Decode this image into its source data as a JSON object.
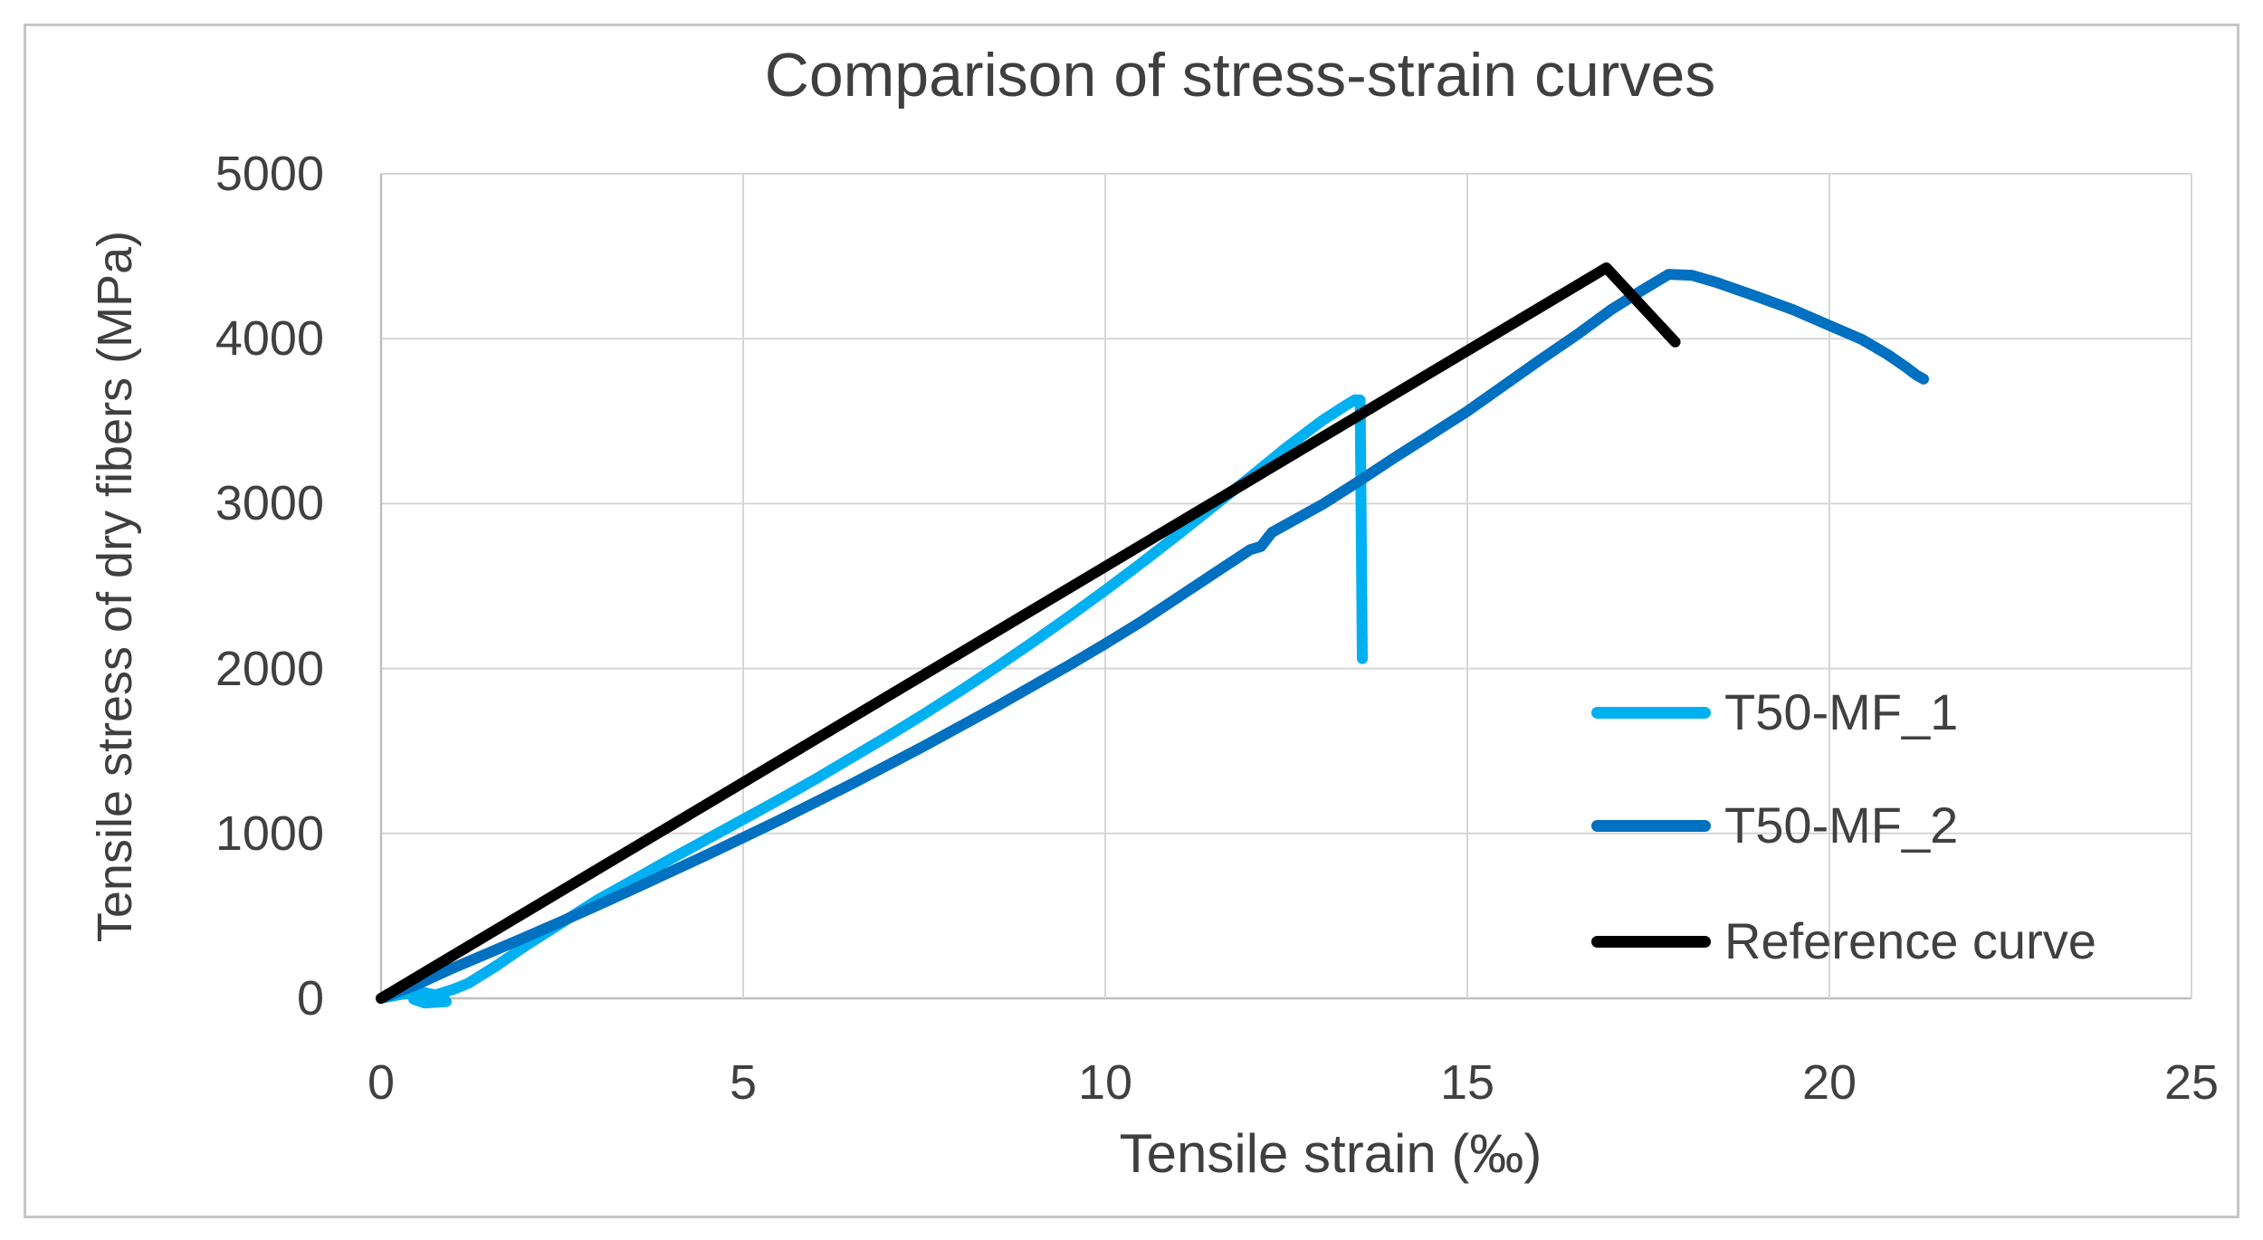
{
  "figure": {
    "title": "Comparison of stress-strain curves",
    "x_axis": {
      "label": "Tensile strain (‰)",
      "ticks": [
        "0",
        "5",
        "10",
        "15",
        "20",
        "25"
      ]
    },
    "y_axis": {
      "label": "Tensile stress of dry fibers (MPa)",
      "ticks": [
        "0",
        "1000",
        "2000",
        "3000",
        "4000",
        "5000"
      ]
    },
    "legend": [
      {
        "label": "T50-MF_1",
        "color": "#00B0F0"
      },
      {
        "label": "T50-MF_2",
        "color": "#0070C0"
      },
      {
        "label": "Reference curve",
        "color": "#000000"
      }
    ],
    "colors": {
      "grid": "#D6D6D6",
      "axis_line": "#BFBFBF",
      "text": "#3F3F3F",
      "series_1": "#00B0F0",
      "series_2": "#0070C0",
      "reference": "#000000"
    }
  },
  "chart_data": {
    "type": "line",
    "title": "Comparison of stress-strain curves",
    "xlabel": "Tensile strain (‰)",
    "ylabel": "Tensile stress of dry fibers (MPa)",
    "xlim": [
      0,
      25
    ],
    "ylim": [
      0,
      5000
    ],
    "x_ticks": [
      0,
      5,
      10,
      15,
      20,
      25
    ],
    "y_ticks": [
      0,
      1000,
      2000,
      3000,
      4000,
      5000
    ],
    "grid": true,
    "legend_position": "inside-right",
    "series": [
      {
        "name": "T50-MF_1",
        "color": "#00B0F0",
        "points": [
          [
            0.05,
            5
          ],
          [
            0.3,
            25
          ],
          [
            0.6,
            35
          ],
          [
            0.85,
            10
          ],
          [
            0.9,
            -20
          ],
          [
            0.6,
            -28
          ],
          [
            0.45,
            -5
          ],
          [
            0.75,
            20
          ],
          [
            1.0,
            55
          ],
          [
            1.2,
            90
          ],
          [
            1.6,
            200
          ],
          [
            2,
            320
          ],
          [
            2.5,
            460
          ],
          [
            3,
            600
          ],
          [
            3.5,
            722
          ],
          [
            4,
            845
          ],
          [
            4.5,
            965
          ],
          [
            5,
            1085
          ],
          [
            5.5,
            1205
          ],
          [
            6,
            1330
          ],
          [
            6.5,
            1460
          ],
          [
            7,
            1590
          ],
          [
            7.5,
            1725
          ],
          [
            8,
            1865
          ],
          [
            8.5,
            2010
          ],
          [
            9,
            2160
          ],
          [
            9.5,
            2315
          ],
          [
            10,
            2475
          ],
          [
            10.5,
            2640
          ],
          [
            11,
            2810
          ],
          [
            11.5,
            2985
          ],
          [
            12,
            3160
          ],
          [
            12.5,
            3340
          ],
          [
            13,
            3505
          ],
          [
            13.3,
            3590
          ],
          [
            13.45,
            3630
          ],
          [
            13.52,
            3628
          ],
          [
            13.55,
            2060
          ]
        ]
      },
      {
        "name": "T50-MF_2",
        "color": "#0070C0",
        "points": [
          [
            0,
            0
          ],
          [
            0.5,
            85
          ],
          [
            1,
            185
          ],
          [
            1.5,
            278
          ],
          [
            2,
            372
          ],
          [
            2.5,
            468
          ],
          [
            3,
            566
          ],
          [
            3.5,
            666
          ],
          [
            4,
            768
          ],
          [
            4.5,
            870
          ],
          [
            5,
            975
          ],
          [
            5.5,
            1080
          ],
          [
            6,
            1190
          ],
          [
            6.5,
            1300
          ],
          [
            7,
            1415
          ],
          [
            7.5,
            1530
          ],
          [
            8,
            1650
          ],
          [
            8.5,
            1770
          ],
          [
            9,
            1895
          ],
          [
            9.5,
            2020
          ],
          [
            10,
            2150
          ],
          [
            10.5,
            2285
          ],
          [
            11,
            2430
          ],
          [
            11.5,
            2575
          ],
          [
            12,
            2720
          ],
          [
            12.15,
            2740
          ],
          [
            12.3,
            2825
          ],
          [
            13,
            2995
          ],
          [
            13.5,
            3135
          ],
          [
            14,
            3280
          ],
          [
            14.5,
            3420
          ],
          [
            15,
            3560
          ],
          [
            15.5,
            3715
          ],
          [
            16,
            3870
          ],
          [
            16.5,
            4020
          ],
          [
            17,
            4180
          ],
          [
            17.4,
            4290
          ],
          [
            17.78,
            4390
          ],
          [
            18.1,
            4385
          ],
          [
            18.45,
            4340
          ],
          [
            19,
            4255
          ],
          [
            19.5,
            4175
          ],
          [
            20,
            4080
          ],
          [
            20.45,
            3995
          ],
          [
            20.8,
            3905
          ],
          [
            21.05,
            3830
          ],
          [
            21.2,
            3780
          ],
          [
            21.3,
            3755
          ]
        ]
      },
      {
        "name": "Reference curve",
        "color": "#000000",
        "points": [
          [
            0,
            0
          ],
          [
            16.92,
            4430
          ],
          [
            17.87,
            3980
          ]
        ]
      }
    ]
  }
}
